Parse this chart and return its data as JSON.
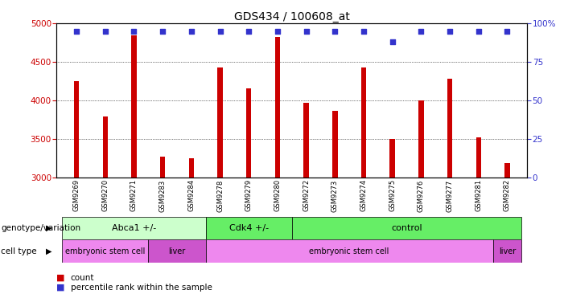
{
  "title": "GDS434 / 100608_at",
  "samples": [
    "GSM9269",
    "GSM9270",
    "GSM9271",
    "GSM9283",
    "GSM9284",
    "GSM9278",
    "GSM9279",
    "GSM9280",
    "GSM9272",
    "GSM9273",
    "GSM9274",
    "GSM9275",
    "GSM9276",
    "GSM9277",
    "GSM9281",
    "GSM9282"
  ],
  "counts": [
    4250,
    3800,
    4850,
    3280,
    3250,
    4430,
    4160,
    4830,
    3970,
    3870,
    4430,
    3500,
    4000,
    4280,
    3530,
    3190
  ],
  "percentiles": [
    95,
    95,
    95,
    95,
    95,
    95,
    95,
    95,
    95,
    95,
    95,
    88,
    95,
    95,
    95,
    95
  ],
  "ylim_left": [
    3000,
    5000
  ],
  "ylim_right": [
    0,
    100
  ],
  "yticks_left": [
    3000,
    3500,
    4000,
    4500,
    5000
  ],
  "yticks_right": [
    0,
    25,
    50,
    75,
    100
  ],
  "bar_color": "#cc0000",
  "dot_color": "#3333cc",
  "grid_color": "#000000",
  "bar_width": 0.18,
  "genotype_groups": [
    {
      "label": "Abca1 +/-",
      "start": 0,
      "end": 4,
      "color": "#ccffcc"
    },
    {
      "label": "Cdk4 +/-",
      "start": 5,
      "end": 7,
      "color": "#66ee66"
    },
    {
      "label": "control",
      "start": 8,
      "end": 15,
      "color": "#66ee66"
    }
  ],
  "celltype_groups": [
    {
      "label": "embryonic stem cell",
      "start": 0,
      "end": 2,
      "color": "#ee88ee"
    },
    {
      "label": "liver",
      "start": 3,
      "end": 4,
      "color": "#cc55cc"
    },
    {
      "label": "embryonic stem cell",
      "start": 5,
      "end": 14,
      "color": "#ee88ee"
    },
    {
      "label": "liver",
      "start": 15,
      "end": 15,
      "color": "#cc55cc"
    }
  ],
  "legend_count_color": "#cc0000",
  "legend_pct_color": "#3333cc",
  "fig_width": 7.01,
  "fig_height": 3.66,
  "fig_dpi": 100
}
